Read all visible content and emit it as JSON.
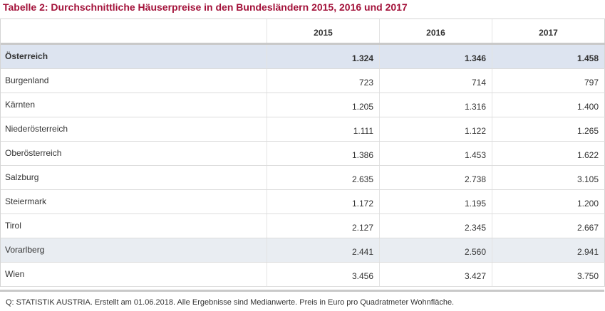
{
  "title": "Tabelle 2: Durchschnittliche Häuserpreise in den Bundesländern 2015, 2016 und 2017",
  "table": {
    "columns": [
      "",
      "2015",
      "2016",
      "2017"
    ],
    "rows": [
      {
        "region": "Österreich",
        "v2015": "1.324",
        "v2016": "1.346",
        "v2017": "1.458"
      },
      {
        "region": "Burgenland",
        "v2015": "723",
        "v2016": "714",
        "v2017": "797"
      },
      {
        "region": "Kärnten",
        "v2015": "1.205",
        "v2016": "1.316",
        "v2017": "1.400"
      },
      {
        "region": "Niederösterreich",
        "v2015": "1.111",
        "v2016": "1.122",
        "v2017": "1.265"
      },
      {
        "region": "Oberösterreich",
        "v2015": "1.386",
        "v2016": "1.453",
        "v2017": "1.622"
      },
      {
        "region": "Salzburg",
        "v2015": "2.635",
        "v2016": "2.738",
        "v2017": "3.105"
      },
      {
        "region": "Steiermark",
        "v2015": "1.172",
        "v2016": "1.195",
        "v2017": "1.200"
      },
      {
        "region": "Tirol",
        "v2015": "2.127",
        "v2016": "2.345",
        "v2017": "2.667"
      },
      {
        "region": "Vorarlberg",
        "v2015": "2.441",
        "v2016": "2.560",
        "v2017": "2.941"
      },
      {
        "region": "Wien",
        "v2015": "3.456",
        "v2016": "3.427",
        "v2017": "3.750"
      }
    ]
  },
  "source": "Q: STATISTIK AUSTRIA. Erstellt am 01.06.2018. Alle Ergebnisse sind Medianwerte. Preis in Euro pro Quadratmeter Wohnfläche.",
  "colors": {
    "title": "#a3123a",
    "highlight_row": "#dde4f0",
    "shaded_row": "#e9edf2"
  }
}
